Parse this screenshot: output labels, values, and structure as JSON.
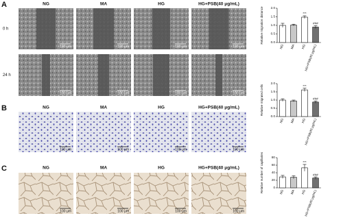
{
  "panels": {
    "labels": [
      "A",
      "B",
      "C"
    ],
    "columns": [
      "NG",
      "MA",
      "HG",
      "HG+PSB(40 μg/mL)"
    ],
    "rows": [
      "0 h",
      "24 h"
    ],
    "scale_bar": "100 μm"
  },
  "chart_data": [
    {
      "type": "bar",
      "ylabel": "Relative migration distance",
      "categories": [
        "NG",
        "MA",
        "HG",
        "HG+PSB(40 μg/mL)"
      ],
      "values": [
        1.0,
        1.02,
        1.48,
        0.9
      ],
      "errors": [
        0.12,
        0.05,
        0.08,
        0.08
      ],
      "colors": [
        "#ffffff",
        "#c8c8c8",
        "#ffffff",
        "#707070"
      ],
      "annotations": [
        {
          "category": "HG",
          "text": "***"
        },
        {
          "category": "HG+PSB(40 μg/mL)",
          "text": "###"
        }
      ],
      "ylim": [
        0,
        2
      ],
      "yticks": [
        {
          "value": 0,
          "label": "0.0"
        },
        {
          "value": 0.5,
          "label": "0.5"
        },
        {
          "value": 1,
          "label": "1.0"
        },
        {
          "value": 1.5,
          "label": "1.5"
        },
        {
          "value": 2,
          "label": "2.0"
        }
      ]
    },
    {
      "type": "bar",
      "ylabel": "Relative migrated cells",
      "categories": [
        "NG",
        "MA",
        "HG",
        "HG+PSB(40 μg/mL)"
      ],
      "values": [
        1.0,
        0.95,
        1.62,
        0.88
      ],
      "errors": [
        0.08,
        0.05,
        0.1,
        0.07
      ],
      "colors": [
        "#ffffff",
        "#c8c8c8",
        "#ffffff",
        "#707070"
      ],
      "annotations": [
        {
          "category": "HG",
          "text": "***"
        },
        {
          "category": "HG+PSB(40 μg/mL)",
          "text": "###"
        }
      ],
      "ylim": [
        0,
        2
      ],
      "yticks": [
        {
          "value": 0,
          "label": "0.0"
        },
        {
          "value": 0.5,
          "label": "0.5"
        },
        {
          "value": 1,
          "label": "1.0"
        },
        {
          "value": 1.5,
          "label": "1.5"
        },
        {
          "value": 2,
          "label": "2.0"
        }
      ]
    },
    {
      "type": "bar",
      "ylabel": "Relative number of capillaries",
      "categories": [
        "NG",
        "MA",
        "HG",
        "HG+PSB(40 μg/mL)"
      ],
      "values": [
        29,
        28,
        53,
        26
      ],
      "errors": [
        4,
        4,
        9,
        3
      ],
      "colors": [
        "#ffffff",
        "#c8c8c8",
        "#ffffff",
        "#707070"
      ],
      "annotations": [
        {
          "category": "HG",
          "text": "***"
        },
        {
          "category": "HG+PSB(40 μg/mL)",
          "text": "###"
        }
      ],
      "ylim": [
        0,
        80
      ],
      "yticks": [
        0,
        20,
        40,
        60,
        80
      ]
    }
  ]
}
